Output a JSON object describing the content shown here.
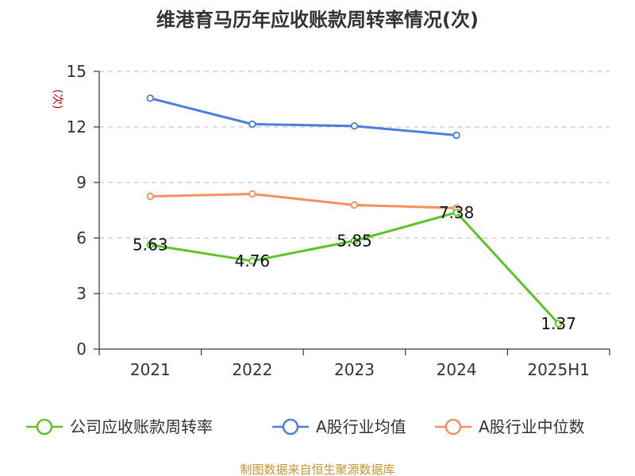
{
  "title": "维港育马历年应收账款周转率情况(次)",
  "footer": "制图数据来自恒生聚源数据库",
  "chart_data": {
    "type": "line",
    "title": "维港育马历年应收账款周转率情况(次)",
    "ylabel": "(次)",
    "xlabel": "",
    "categories": [
      "2021",
      "2022",
      "2023",
      "2024",
      "2025H1"
    ],
    "ylim": [
      0,
      15
    ],
    "yticks": [
      0,
      3,
      6,
      9,
      12,
      15
    ],
    "grid": true,
    "legend_position": "bottom",
    "series": [
      {
        "name": "公司应收账款周转率",
        "color": "#5cc425",
        "values": [
          5.63,
          4.76,
          5.85,
          7.38,
          1.37
        ],
        "labels": true
      },
      {
        "name": "A股行业均值",
        "color": "#4a7fdc",
        "values": [
          13.55,
          12.15,
          12.05,
          11.55,
          null
        ],
        "labels": false
      },
      {
        "name": "A股行业中位数",
        "color": "#f79060",
        "values": [
          8.25,
          8.38,
          7.78,
          7.62,
          null
        ],
        "labels": false
      }
    ]
  }
}
